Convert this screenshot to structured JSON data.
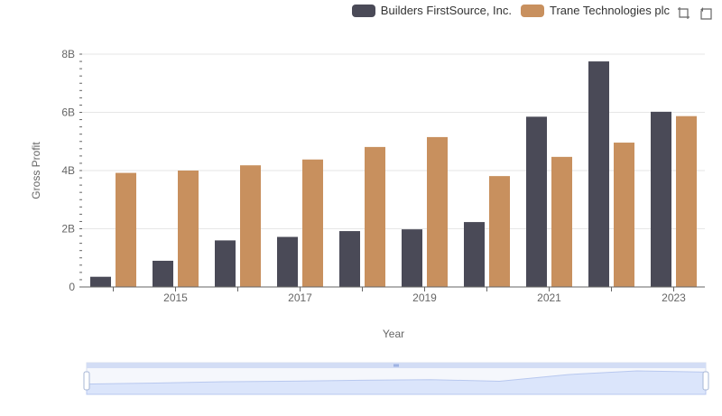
{
  "legend": {
    "series_a": "Builders FirstSource, Inc.",
    "series_b": "Trane Technologies plc"
  },
  "toolbox": {
    "zoom_icon": "zoom-icon",
    "restore_icon": "restore-icon"
  },
  "colors": {
    "series_a": "#4a4a57",
    "series_b": "#c8905e",
    "grid": "#e6e6e6",
    "slider_fill": "#dbe5fb"
  },
  "chart_data": {
    "type": "bar",
    "xlabel": "Year",
    "ylabel": "Gross Profit",
    "ylim": [
      0,
      8000000000
    ],
    "yticks": [
      {
        "value": 0,
        "label": "0"
      },
      {
        "value": 2000000000,
        "label": "2B"
      },
      {
        "value": 4000000000,
        "label": "4B"
      },
      {
        "value": 6000000000,
        "label": "6B"
      },
      {
        "value": 8000000000,
        "label": "8B"
      }
    ],
    "categories": [
      "2014",
      "2015",
      "2016",
      "2017",
      "2018",
      "2019",
      "2020",
      "2021",
      "2022",
      "2023"
    ],
    "xtick_labels_shown": [
      "2015",
      "2017",
      "2019",
      "2021",
      "2023"
    ],
    "series": [
      {
        "name": "Builders FirstSource, Inc.",
        "values": [
          350000000,
          900000000,
          1600000000,
          1720000000,
          1920000000,
          1980000000,
          2230000000,
          5850000000,
          7750000000,
          6020000000
        ]
      },
      {
        "name": "Trane Technologies plc",
        "values": [
          3920000000,
          4000000000,
          4180000000,
          4380000000,
          4810000000,
          5150000000,
          3810000000,
          4470000000,
          4960000000,
          5870000000
        ]
      }
    ],
    "grid": true,
    "legend_position": "top-right",
    "data_zoom": {
      "start": 0,
      "end": 100
    }
  }
}
